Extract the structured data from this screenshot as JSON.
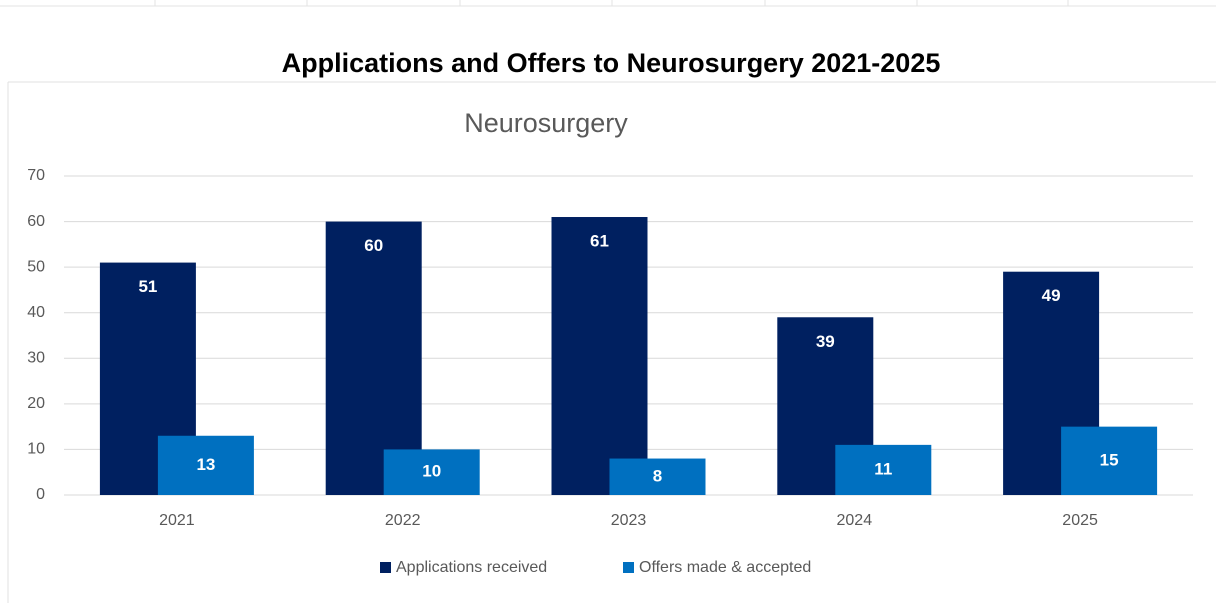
{
  "heading": "Applications and Offers to Neurosurgery 2021-2025",
  "chart_data": {
    "type": "bar",
    "title": "Neurosurgery",
    "categories": [
      "2021",
      "2022",
      "2023",
      "2024",
      "2025"
    ],
    "series": [
      {
        "name": "Applications received",
        "color": "#002060",
        "values": [
          51,
          60,
          61,
          39,
          49
        ]
      },
      {
        "name": "Offers made & accepted",
        "color": "#0070c0",
        "values": [
          13,
          10,
          8,
          11,
          15
        ]
      }
    ],
    "ylim": [
      0,
      70
    ],
    "yticks": [
      0,
      10,
      20,
      30,
      40,
      50,
      60,
      70
    ],
    "grid": true,
    "legend": "bottom"
  }
}
